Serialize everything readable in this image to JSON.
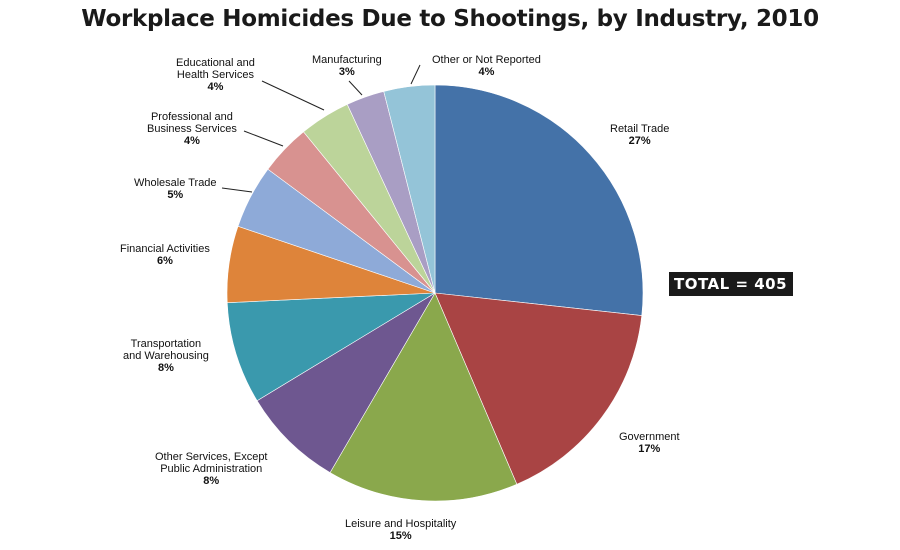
{
  "chart_data": {
    "type": "pie",
    "title": "Workplace Homicides Due to Shootings, by Industry, 2010",
    "total_label": "TOTAL = 405",
    "slices": [
      {
        "label": "Retail Trade",
        "pct_label": "27%",
        "value": 27,
        "color": "#4472a8"
      },
      {
        "label": "Government",
        "pct_label": "17%",
        "value": 17,
        "color": "#a94444"
      },
      {
        "label": "Leisure and Hospitality",
        "pct_label": "15%",
        "value": 15,
        "color": "#8aa84c"
      },
      {
        "label": "Other Services, Except\nPublic Administration",
        "pct_label": "8%",
        "value": 8,
        "color": "#6e5790"
      },
      {
        "label": "Transportation\nand Warehousing",
        "pct_label": "8%",
        "value": 8,
        "color": "#3a99ad"
      },
      {
        "label": "Financial Activities",
        "pct_label": "6%",
        "value": 6,
        "color": "#de843a"
      },
      {
        "label": "Wholesale Trade",
        "pct_label": "5%",
        "value": 5,
        "color": "#8eaad8"
      },
      {
        "label": "Professional and\nBusiness Services",
        "pct_label": "4%",
        "value": 4,
        "color": "#d89290"
      },
      {
        "label": "Educational and\nHealth Services",
        "pct_label": "4%",
        "value": 4,
        "color": "#bcd49a"
      },
      {
        "label": "Manufacturing",
        "pct_label": "3%",
        "value": 3,
        "color": "#a99ec4"
      },
      {
        "label": "Other or Not Reported",
        "pct_label": "4%",
        "value": 4,
        "color": "#94c4d8"
      }
    ]
  }
}
